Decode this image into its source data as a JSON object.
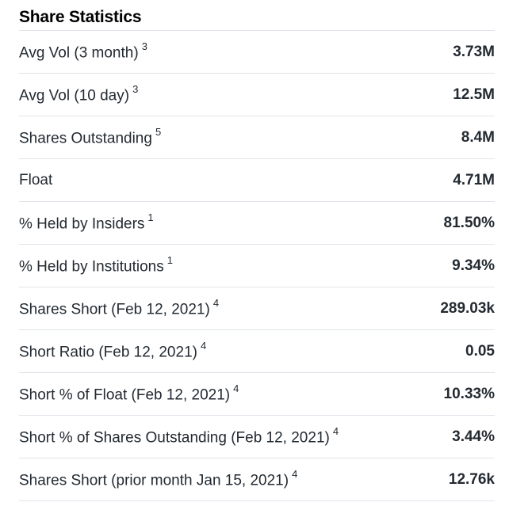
{
  "section": {
    "title": "Share Statistics",
    "rows": [
      {
        "label": "Avg Vol (3 month)",
        "note": "3",
        "value": "3.73M"
      },
      {
        "label": "Avg Vol (10 day)",
        "note": "3",
        "value": "12.5M"
      },
      {
        "label": "Shares Outstanding",
        "note": "5",
        "value": "8.4M"
      },
      {
        "label": "Float",
        "note": "",
        "value": "4.71M"
      },
      {
        "label": "% Held by Insiders",
        "note": "1",
        "value": "81.50%"
      },
      {
        "label": "% Held by Institutions",
        "note": "1",
        "value": "9.34%"
      },
      {
        "label": "Shares Short (Feb 12, 2021)",
        "note": "4",
        "value": "289.03k"
      },
      {
        "label": "Short Ratio (Feb 12, 2021)",
        "note": "4",
        "value": "0.05"
      },
      {
        "label": "Short % of Float (Feb 12, 2021)",
        "note": "4",
        "value": "10.33%"
      },
      {
        "label": "Short % of Shares Outstanding (Feb 12, 2021)",
        "note": "4",
        "value": "3.44%"
      },
      {
        "label": "Shares Short (prior month Jan 15, 2021)",
        "note": "4",
        "value": "12.76k"
      }
    ]
  }
}
